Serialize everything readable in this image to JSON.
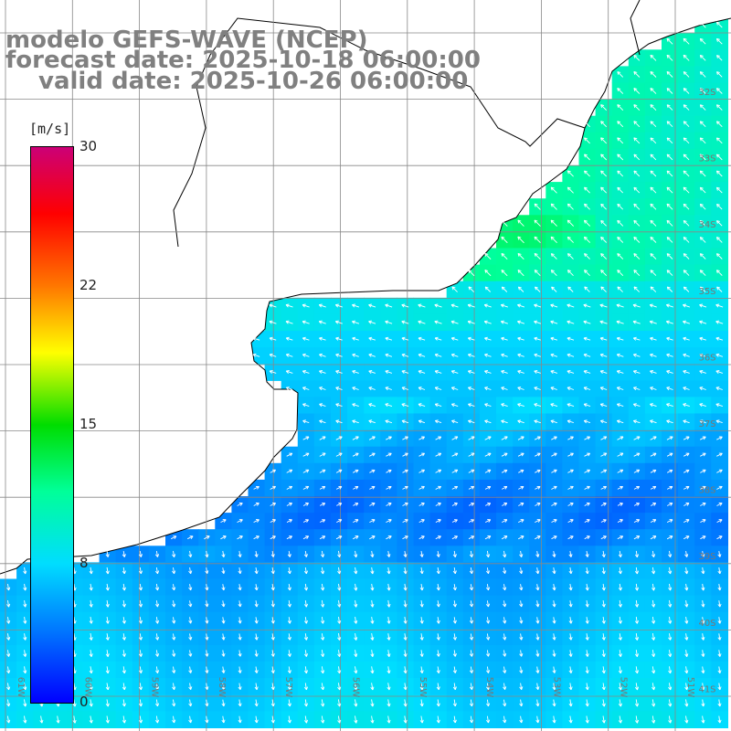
{
  "title": {
    "line1": "modelo GEFS-WAVE (NCEP)",
    "line2": "forecast date: 2025-10-18 06:00:00",
    "line3": "valid date: 2025-10-26 06:00:00"
  },
  "colorbar": {
    "unit": "[m/s]",
    "ticks": [
      "30",
      "22",
      "15",
      "8",
      "0"
    ],
    "range": [
      0,
      30
    ],
    "colors": [
      "#0000ff",
      "#0077ff",
      "#00ddff",
      "#00ff99",
      "#00dd00",
      "#ffff00",
      "#ff7700",
      "#ff0000",
      "#cc0077"
    ]
  },
  "map": {
    "lat_labels": [
      "32S",
      "33S",
      "34S",
      "35S",
      "36S",
      "37S",
      "38S",
      "39S",
      "40S",
      "41S"
    ],
    "lon_labels": [
      "61W",
      "60W",
      "59W",
      "58W",
      "57W",
      "56W",
      "55W",
      "54W",
      "53W",
      "52W",
      "51W"
    ],
    "land_color": "#ffffff",
    "grid_color": "#888888",
    "coast_color": "#000000",
    "arrow_color": "#ffffff"
  }
}
